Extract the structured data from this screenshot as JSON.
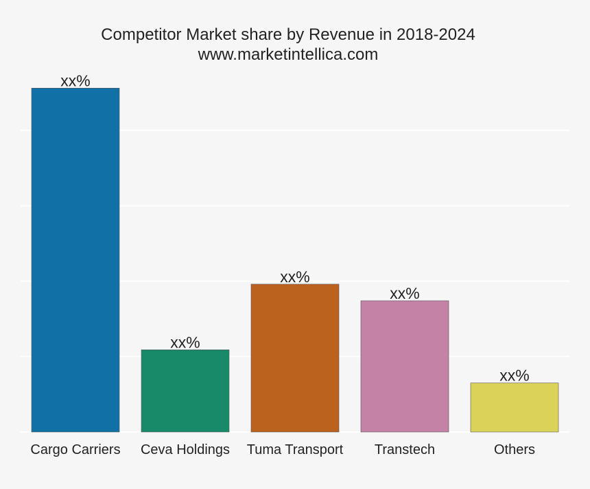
{
  "chart_data": {
    "type": "bar",
    "title": "Competitor Market share by Revenue in 2018-2024",
    "subtitle": "www.marketintellica.com",
    "categories": [
      "Cargo Carriers",
      "Ceva Holdings",
      "Tuma Transport",
      "Transtech",
      "Others"
    ],
    "values": [
      45.6,
      10.9,
      19.6,
      17.4,
      6.5
    ],
    "data_labels": [
      "xx%",
      "xx%",
      "xx%",
      "xx%",
      "xx%"
    ],
    "colors": [
      "#1170a6",
      "#188a6a",
      "#bb621e",
      "#c483a6",
      "#dbd25a"
    ],
    "ylim": [
      0,
      50
    ],
    "yticks": [
      0,
      10,
      20,
      30,
      40
    ],
    "grid": true,
    "legend": "none"
  }
}
